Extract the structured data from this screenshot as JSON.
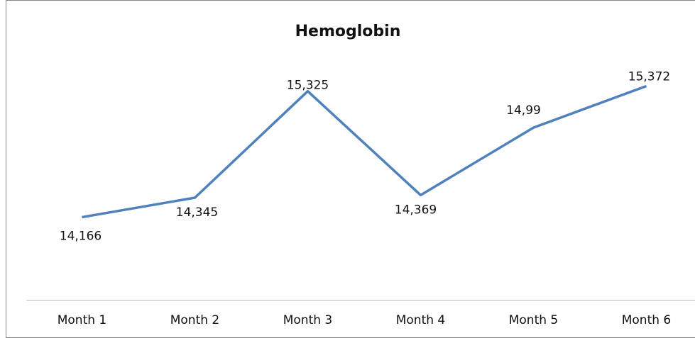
{
  "chart_data": {
    "type": "line",
    "title": "Hemoglobin",
    "categories": [
      "Month 1",
      "Month 2",
      "Month 3",
      "Month 4",
      "Month 5",
      "Month 6"
    ],
    "values": [
      14.166,
      14.345,
      15.325,
      14.369,
      14.99,
      15.372
    ],
    "value_labels": [
      "14,166",
      "14,345",
      "15,325",
      "14,369",
      "14,99",
      "15,372"
    ],
    "color": "#4f81bd",
    "ylim": [
      13.4,
      15.6
    ]
  }
}
